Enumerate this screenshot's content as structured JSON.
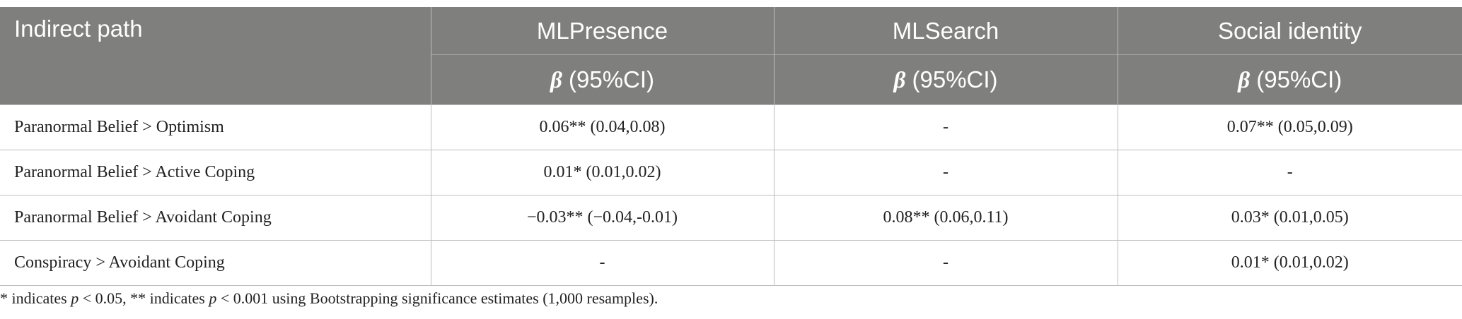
{
  "table": {
    "header": [
      "Indirect path",
      "MLPresence",
      "MLSearch",
      "Social identity"
    ],
    "subheader": [
      {
        "symbol": "β",
        "label": " (95%CI)"
      },
      {
        "symbol": "β",
        "label": " (95%CI)"
      },
      {
        "symbol": "β",
        "label": " (95%CI)"
      }
    ],
    "rows": [
      [
        "Paranormal Belief > Optimism",
        "0.06** (0.04,0.08)",
        "-",
        "0.07** (0.05,0.09)"
      ],
      [
        "Paranormal Belief > Active Coping",
        "0.01* (0.01,0.02)",
        "-",
        "-"
      ],
      [
        "Paranormal Belief > Avoidant Coping",
        "−0.03** (−0.04,-0.01)",
        "0.08** (0.06,0.11)",
        "0.03* (0.01,0.05)"
      ],
      [
        "Conspiracy > Avoidant Coping",
        "-",
        "-",
        "0.01* (0.01,0.02)"
      ]
    ]
  },
  "footnote": [
    "* indicates ",
    "p",
    " < 0.05, ** indicates ",
    "p",
    " < 0.001 using Bootstrapping significance estimates (1,000 resamples)."
  ]
}
